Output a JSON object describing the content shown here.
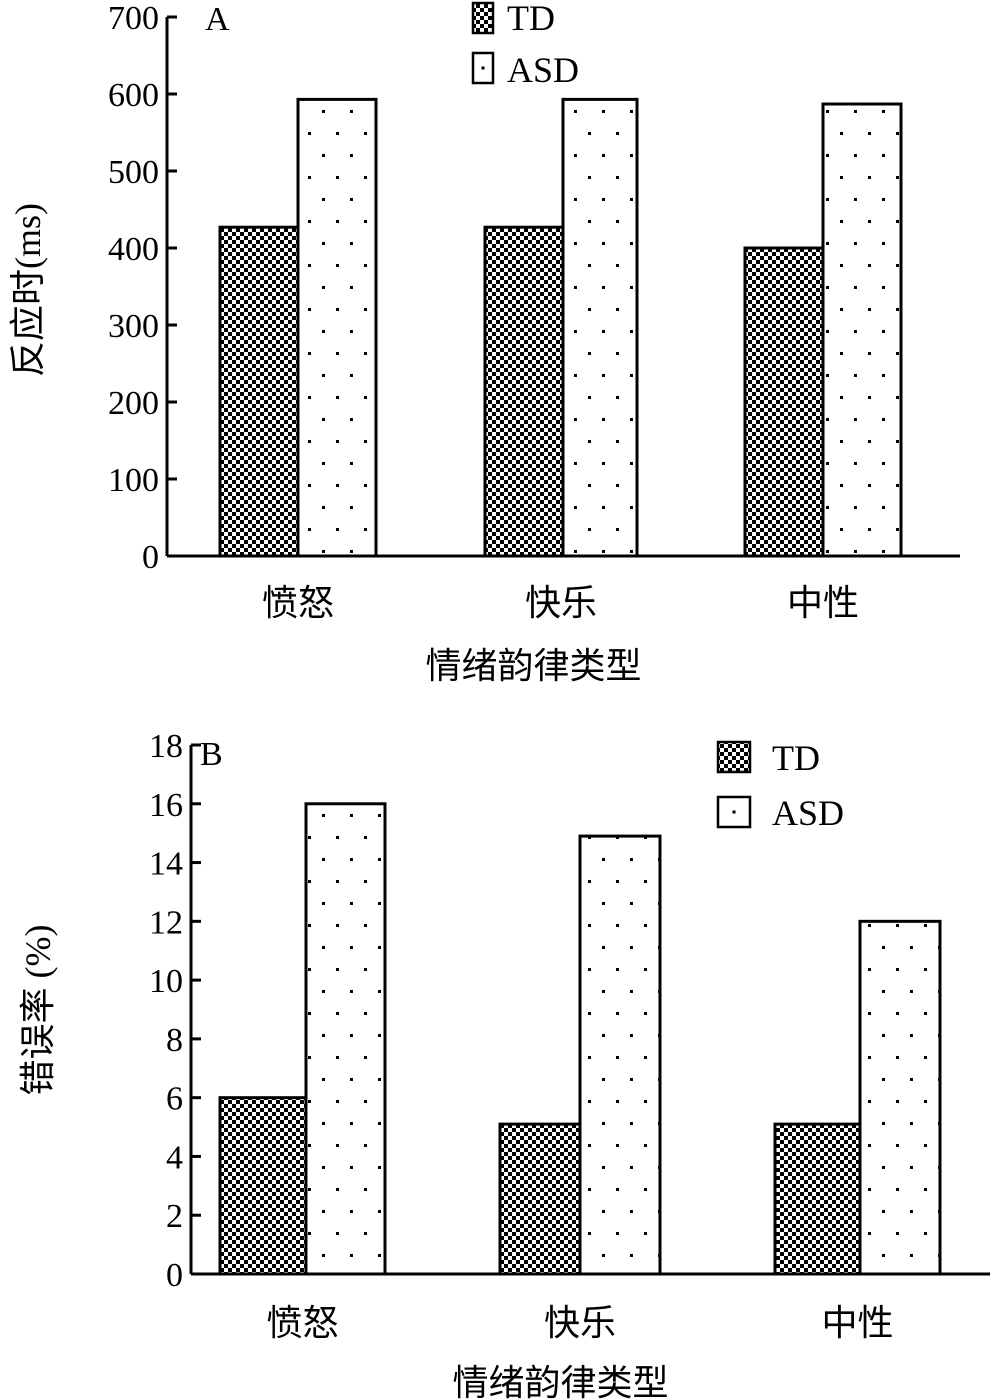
{
  "chart_data": [
    {
      "type": "bar",
      "panel_label": "A",
      "categories": [
        "愤怒",
        "快乐",
        "中性"
      ],
      "series": [
        {
          "name": "TD",
          "values": [
            427,
            427,
            400
          ]
        },
        {
          "name": "ASD",
          "values": [
            593,
            593,
            587
          ]
        }
      ],
      "xlabel": "情绪韵律类型",
      "ylabel": "反应时(ms)",
      "ylim": [
        0,
        700
      ],
      "yticks": [
        0,
        100,
        200,
        300,
        400,
        500,
        600,
        700
      ],
      "grid": false,
      "legend_position": "top-right",
      "patterns": {
        "TD": "checkerboard",
        "ASD": "sparse-dots"
      }
    },
    {
      "type": "bar",
      "panel_label": "B",
      "categories": [
        "愤怒",
        "快乐",
        "中性"
      ],
      "series": [
        {
          "name": "TD",
          "values": [
            6.0,
            5.1,
            5.1
          ]
        },
        {
          "name": "ASD",
          "values": [
            16.0,
            14.9,
            12.0
          ]
        }
      ],
      "xlabel": "情绪韵律类型",
      "ylabel": "错误率 (%)",
      "ylim": [
        0,
        18
      ],
      "yticks": [
        0,
        2,
        4,
        6,
        8,
        10,
        12,
        14,
        16,
        18
      ],
      "grid": false,
      "legend_position": "top-right",
      "patterns": {
        "TD": "checkerboard",
        "ASD": "sparse-dots"
      }
    }
  ]
}
